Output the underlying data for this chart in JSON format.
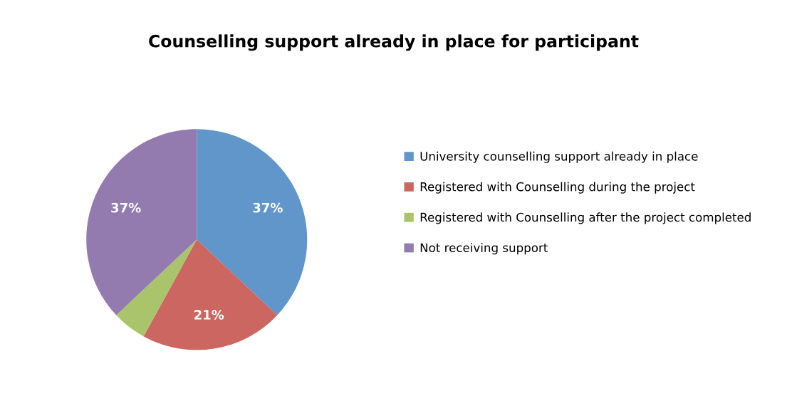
{
  "chart_data": {
    "type": "pie",
    "title": "Counselling support already in place for participant",
    "categories": [
      "University counselling support already in place",
      "Registered with Counselling during the project",
      "Registered with Counselling after the project completed",
      "Not receiving support"
    ],
    "values": [
      37,
      21,
      5,
      37
    ],
    "value_labels": [
      "37%",
      "21%",
      null,
      "37%"
    ],
    "colors": [
      "#6096c9",
      "#cc6660",
      "#a9c46a",
      "#937bb0"
    ],
    "legend": "right"
  }
}
